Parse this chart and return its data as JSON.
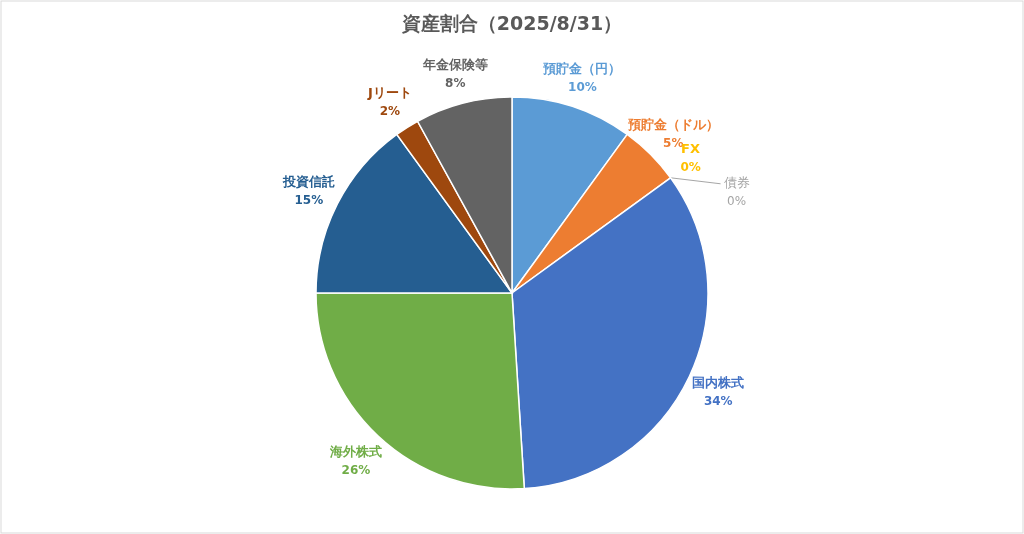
{
  "chart_data": {
    "type": "pie",
    "title": "資産割合（2025/8/31）",
    "categories": [
      "預貯金（円）",
      "預貯金（ドル）",
      "FX",
      "債券",
      "国内株式",
      "海外株式",
      "投資信託",
      "Jリート",
      "年金保険等"
    ],
    "values": [
      10,
      5,
      0,
      0,
      34,
      26,
      15,
      2,
      8
    ],
    "colors": [
      "#5b9bd5",
      "#ed7d31",
      "#ffc000",
      "#a5a5a5",
      "#4472c4",
      "#70ad47",
      "#255e91",
      "#9e480e",
      "#636363"
    ],
    "value_labels": [
      "10%",
      "5%",
      "0%",
      "0%",
      "34%",
      "26%",
      "15%",
      "2%",
      "8%"
    ]
  }
}
